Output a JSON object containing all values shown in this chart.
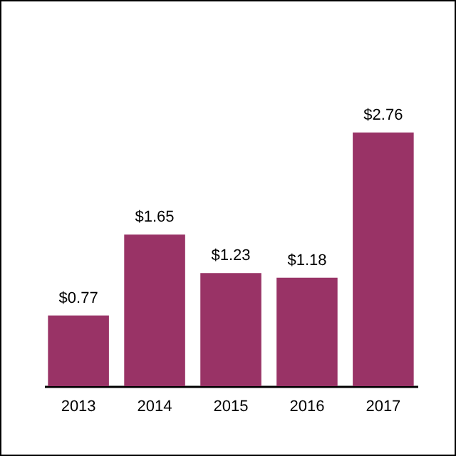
{
  "chart_data": {
    "type": "bar",
    "categories": [
      "2013",
      "2014",
      "2015",
      "2016",
      "2017"
    ],
    "values": [
      0.77,
      1.65,
      1.23,
      1.18,
      2.76
    ],
    "color": "#993366",
    "data_labels": true,
    "value_labels": [
      "$0.77",
      "$1.65",
      "$1.23",
      "$1.18",
      "$2.76"
    ]
  }
}
